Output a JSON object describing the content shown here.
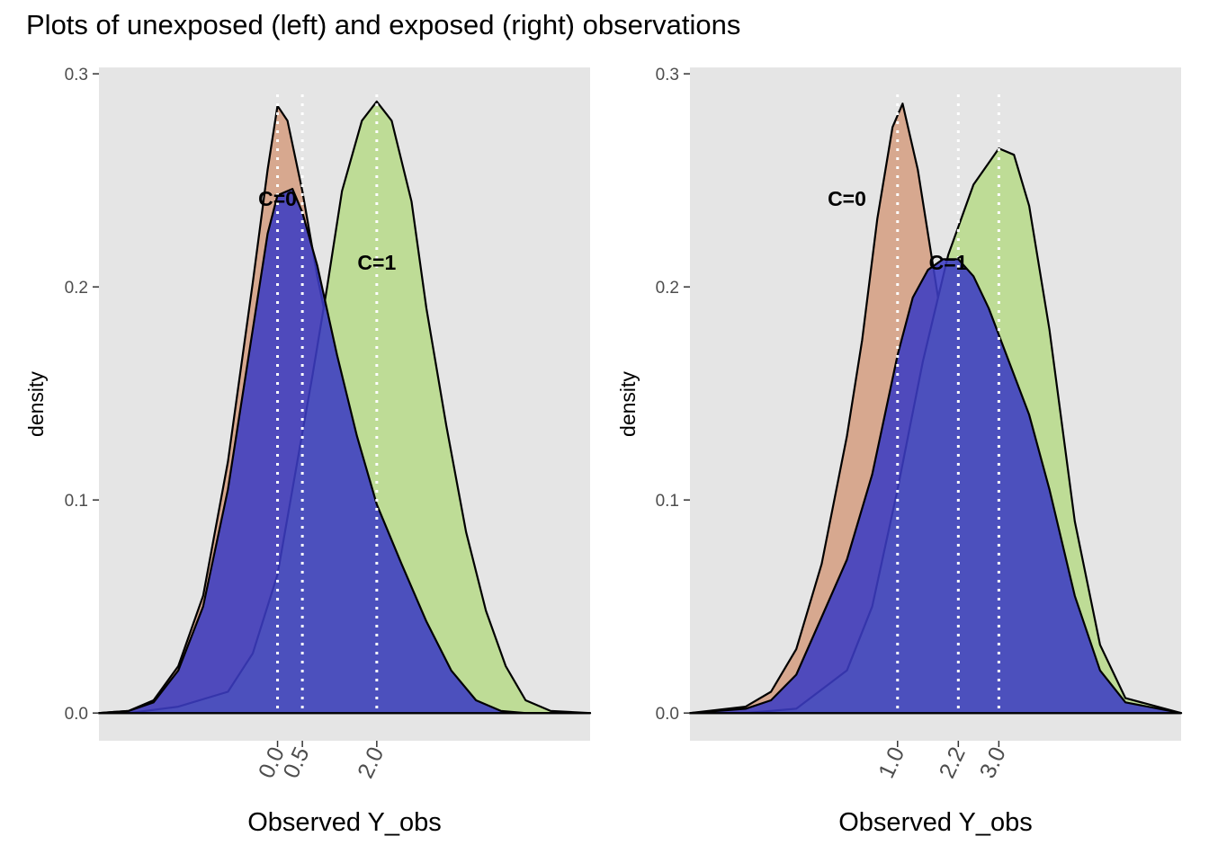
{
  "figure_title": "Plots of unexposed (left) and exposed (right) observations",
  "colors": {
    "panel_background": "#e5e5e5",
    "c0_fill": "#d7a88f",
    "c1_fill": "#bedc96",
    "blue_fill": "#3c3cc3",
    "outline": "#000000",
    "reference_line": "#ffffff"
  },
  "chart_data": [
    {
      "type": "area",
      "panel": "left",
      "xlabel": "Observed Y_obs",
      "ylabel": "density",
      "ylim": [
        -0.013,
        0.303
      ],
      "xlim": [
        -3.6,
        6.3
      ],
      "yticks": [
        0.0,
        0.1,
        0.2,
        0.3
      ],
      "ytick_labels": [
        "0.0",
        "0.1",
        "0.2",
        "0.3"
      ],
      "xticks": [
        0.0,
        0.5,
        2.0
      ],
      "xtick_labels": [
        "0.0",
        "0.5",
        "2.0"
      ],
      "grid": false,
      "reference_lines_x": [
        0.0,
        0.5,
        2.0
      ],
      "annotations": [
        {
          "text": "C=0",
          "x": 0.0,
          "y": 0.238
        },
        {
          "text": "C=1",
          "x": 2.0,
          "y": 0.208
        }
      ],
      "series": [
        {
          "fill": "c0",
          "outlined": true,
          "x": [
            -3.6,
            -3.0,
            -2.5,
            -2.0,
            -1.5,
            -1.0,
            -0.5,
            -0.2,
            0.0,
            0.2,
            0.5,
            0.8,
            1.2,
            1.6,
            2.0,
            2.5,
            3.0,
            3.5,
            4.0,
            4.5,
            5.0,
            6.3
          ],
          "y": [
            0.0,
            0.001,
            0.006,
            0.022,
            0.055,
            0.118,
            0.202,
            0.255,
            0.285,
            0.278,
            0.245,
            0.205,
            0.16,
            0.112,
            0.072,
            0.035,
            0.014,
            0.004,
            0.001,
            0.0,
            0.0,
            0.0
          ]
        },
        {
          "fill": "c1",
          "outlined": true,
          "x": [
            -3.6,
            -3.0,
            -2.0,
            -1.0,
            -0.5,
            0.0,
            0.3,
            0.7,
            1.0,
            1.3,
            1.7,
            2.0,
            2.3,
            2.7,
            3.0,
            3.4,
            3.8,
            4.2,
            4.6,
            5.0,
            5.5,
            6.3
          ],
          "y": [
            0.0,
            0.0,
            0.003,
            0.01,
            0.028,
            0.065,
            0.105,
            0.158,
            0.2,
            0.245,
            0.278,
            0.287,
            0.278,
            0.24,
            0.19,
            0.135,
            0.085,
            0.048,
            0.022,
            0.006,
            0.001,
            0.0
          ]
        },
        {
          "fill": "blue",
          "outlined": true,
          "x": [
            -3.6,
            -3.0,
            -2.5,
            -2.0,
            -1.5,
            -1.0,
            -0.5,
            -0.2,
            0.0,
            0.3,
            0.5,
            0.8,
            1.2,
            1.6,
            2.0,
            2.5,
            3.0,
            3.5,
            4.0,
            4.5,
            5.0,
            6.3
          ],
          "y": [
            0.0,
            0.001,
            0.005,
            0.02,
            0.05,
            0.105,
            0.18,
            0.225,
            0.243,
            0.246,
            0.235,
            0.21,
            0.168,
            0.13,
            0.098,
            0.07,
            0.043,
            0.02,
            0.006,
            0.001,
            0.0,
            0.0
          ]
        }
      ]
    },
    {
      "type": "area",
      "panel": "right",
      "xlabel": "Observed Y_obs",
      "ylabel": "density",
      "ylim": [
        -0.013,
        0.303
      ],
      "xlim": [
        -3.1,
        6.6
      ],
      "yticks": [
        0.0,
        0.1,
        0.2,
        0.3
      ],
      "ytick_labels": [
        "0.0",
        "0.1",
        "0.2",
        "0.3"
      ],
      "xticks": [
        1.0,
        2.2,
        3.0
      ],
      "xtick_labels": [
        "1.0",
        "2.2",
        "3.0"
      ],
      "grid": false,
      "reference_lines_x": [
        1.0,
        2.2,
        3.0
      ],
      "annotations": [
        {
          "text": "C=0",
          "x": 0.0,
          "y": 0.238
        },
        {
          "text": "C=1",
          "x": 2.0,
          "y": 0.208
        }
      ],
      "series": [
        {
          "fill": "c0",
          "outlined": true,
          "x": [
            -3.1,
            -2.0,
            -1.5,
            -1.0,
            -0.5,
            0.0,
            0.3,
            0.6,
            0.9,
            1.1,
            1.4,
            1.7,
            2.0,
            2.4,
            2.8,
            3.2,
            3.6,
            4.0,
            4.5,
            5.0,
            6.6
          ],
          "y": [
            0.0,
            0.003,
            0.01,
            0.03,
            0.07,
            0.13,
            0.175,
            0.232,
            0.275,
            0.286,
            0.255,
            0.21,
            0.165,
            0.125,
            0.09,
            0.06,
            0.032,
            0.013,
            0.003,
            0.001,
            0.0
          ]
        },
        {
          "fill": "c1",
          "outlined": true,
          "x": [
            -3.1,
            -2.0,
            -1.0,
            0.0,
            0.5,
            1.0,
            1.5,
            2.0,
            2.5,
            3.0,
            3.3,
            3.6,
            4.0,
            4.5,
            5.0,
            5.5,
            6.6
          ],
          "y": [
            0.0,
            0.0,
            0.002,
            0.02,
            0.05,
            0.105,
            0.165,
            0.215,
            0.248,
            0.265,
            0.262,
            0.238,
            0.18,
            0.09,
            0.032,
            0.007,
            0.0
          ]
        },
        {
          "fill": "blue",
          "outlined": true,
          "x": [
            -3.1,
            -2.0,
            -1.5,
            -1.0,
            -0.5,
            0.0,
            0.5,
            1.0,
            1.3,
            1.6,
            1.9,
            2.2,
            2.5,
            2.8,
            3.2,
            3.6,
            4.0,
            4.5,
            5.0,
            5.5,
            6.6
          ],
          "y": [
            0.0,
            0.002,
            0.006,
            0.018,
            0.045,
            0.072,
            0.112,
            0.168,
            0.195,
            0.208,
            0.213,
            0.213,
            0.205,
            0.19,
            0.165,
            0.14,
            0.105,
            0.055,
            0.02,
            0.005,
            0.0
          ]
        }
      ]
    }
  ]
}
